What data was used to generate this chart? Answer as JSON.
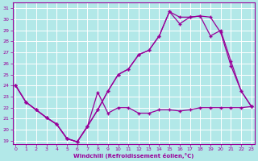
{
  "xlabel": "Windchill (Refroidissement éolien,°C)",
  "background_color": "#b2e8e8",
  "line_color": "#990099",
  "grid_color": "#ffffff",
  "ylim": [
    18.7,
    31.5
  ],
  "xlim": [
    -0.3,
    23.3
  ],
  "yticks": [
    19,
    20,
    21,
    22,
    23,
    24,
    25,
    26,
    27,
    28,
    29,
    30,
    31
  ],
  "xticks": [
    0,
    1,
    2,
    3,
    4,
    5,
    6,
    7,
    8,
    9,
    10,
    11,
    12,
    13,
    14,
    15,
    16,
    17,
    18,
    19,
    20,
    21,
    22,
    23
  ],
  "line1_x": [
    0,
    1,
    2,
    3,
    4,
    5,
    6,
    7,
    8,
    9,
    10,
    11,
    12,
    13,
    14,
    15,
    16,
    17,
    18,
    19,
    20,
    21,
    22,
    23
  ],
  "line1_y": [
    24,
    22.5,
    21.8,
    21.1,
    20.5,
    19.2,
    18.9,
    20.3,
    23.4,
    21.5,
    22.0,
    22.0,
    21.5,
    21.5,
    21.8,
    21.8,
    21.7,
    21.8,
    22.0,
    22.0,
    22.0,
    22.0,
    22.0,
    22.1
  ],
  "line2_x": [
    0,
    1,
    2,
    3,
    4,
    5,
    6,
    7,
    8,
    9,
    10,
    11,
    12,
    13,
    14,
    15,
    16,
    17,
    18,
    19,
    20,
    21,
    22,
    23
  ],
  "line2_y": [
    24,
    22.5,
    21.8,
    21.1,
    20.5,
    19.2,
    18.9,
    20.3,
    21.8,
    23.5,
    25.0,
    25.5,
    26.8,
    27.2,
    28.5,
    30.7,
    29.6,
    30.2,
    30.3,
    30.2,
    28.8,
    25.8,
    23.5,
    22.1
  ],
  "line3_x": [
    0,
    1,
    2,
    3,
    4,
    5,
    6,
    7,
    8,
    9,
    10,
    11,
    12,
    13,
    14,
    15,
    16,
    17,
    18,
    19,
    20,
    21,
    22,
    23
  ],
  "line3_y": [
    24,
    22.5,
    21.8,
    21.1,
    20.5,
    19.2,
    18.9,
    20.3,
    21.8,
    23.5,
    25.0,
    25.5,
    26.8,
    27.2,
    28.5,
    30.7,
    30.2,
    30.2,
    30.3,
    28.5,
    29.0,
    26.2,
    23.5,
    22.1
  ]
}
